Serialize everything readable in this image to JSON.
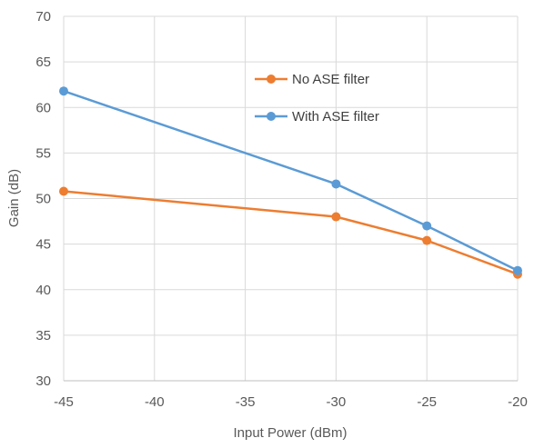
{
  "chart_data": {
    "type": "line",
    "xlabel": "Input Power (dBm)",
    "ylabel": "Gain (dB)",
    "xlim": [
      -45,
      -20
    ],
    "ylim": [
      30,
      70
    ],
    "xticks": [
      -45,
      -40,
      -35,
      -30,
      -25,
      -20
    ],
    "yticks": [
      30,
      35,
      40,
      45,
      50,
      55,
      60,
      65,
      70
    ],
    "grid": true,
    "legend_position": "top-right inside",
    "series": [
      {
        "name": "No ASE filter",
        "color": "#ED7D31",
        "x": [
          -45,
          -30,
          -25,
          -20
        ],
        "y": [
          50.8,
          48.0,
          45.4,
          41.7
        ]
      },
      {
        "name": "With ASE filter",
        "color": "#5B9BD5",
        "x": [
          -45,
          -30,
          -25,
          -20
        ],
        "y": [
          61.8,
          51.6,
          47.0,
          42.1
        ]
      }
    ]
  }
}
